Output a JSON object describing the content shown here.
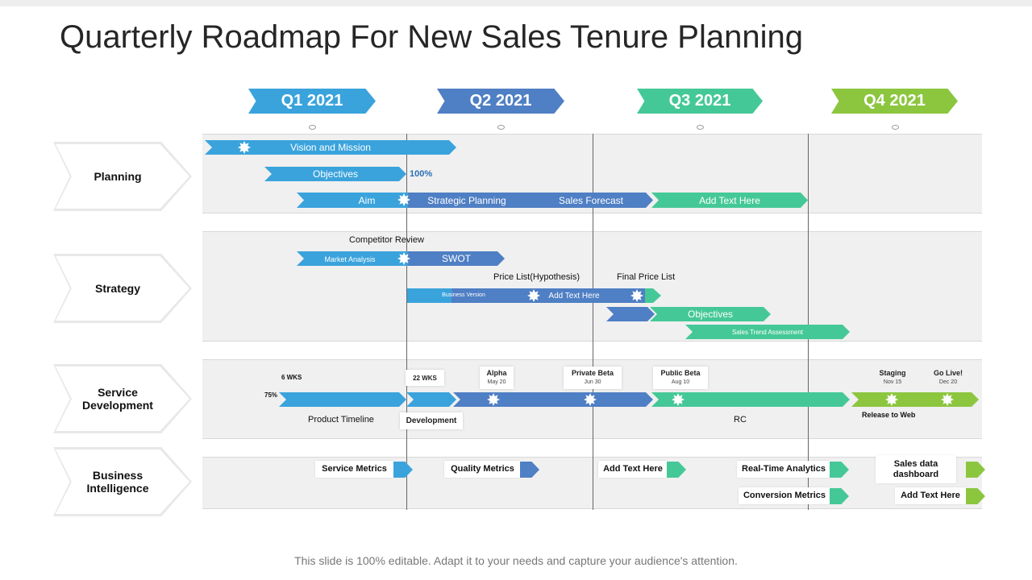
{
  "title": "Quarterly Roadmap For New Sales Tenure Planning",
  "footer": "This slide is 100% editable. Adapt it to your needs and capture your audience's attention.",
  "colors": {
    "q1": "#3aa3dc",
    "q2": "#4f7fc4",
    "q3": "#45c898",
    "q4": "#8cc63f",
    "band": "#f0f0f0"
  },
  "quarters": [
    "Q1 2021",
    "Q2 2021",
    "Q3 2021",
    "Q4 2021"
  ],
  "rows": [
    "Planning",
    "Strategy",
    "Service Development",
    "Business Intelligence"
  ],
  "planning": {
    "vision": "Vision and Mission",
    "objectives": "Objectives",
    "pct": "100%",
    "aim": "Aim",
    "strategic": "Strategic Planning",
    "sales_forecast": "Sales Forecast",
    "add_text": "Add Text Here"
  },
  "strategy": {
    "competitor": "Competitor Review",
    "market": "Market Analysis",
    "swot": "SWOT",
    "price_hyp": "Price List(Hypothesis)",
    "final_price": "Final Price List",
    "business_version": "Business Version",
    "add_text": "Add Text Here",
    "objectives": "Objectives",
    "sales_trend": "Sales Trend Assessment"
  },
  "service": {
    "six_wks": "6 WKS",
    "pct": "75%",
    "twentytwo_wks": "22 WKS",
    "alpha": "Alpha",
    "alpha_date": "May 20",
    "private_beta": "Private Beta",
    "private_date": "Jun 30",
    "public_beta": "Public Beta",
    "public_date": "Aug 10",
    "staging": "Staging",
    "staging_date": "Nov 15",
    "golive": "Go Live!",
    "golive_date": "Dec 20",
    "product_timeline": "Product Timeline",
    "development": "Development",
    "rc": "RC",
    "release": "Release to Web"
  },
  "bi": {
    "service_metrics": "Service Metrics",
    "quality_metrics": "Quality  Metrics",
    "add_text_1": "Add Text Here",
    "realtime": "Real-Time Analytics",
    "sales_dashboard": "Sales data dashboard",
    "conversion": "Conversion Metrics",
    "add_text_2": "Add Text Here"
  }
}
